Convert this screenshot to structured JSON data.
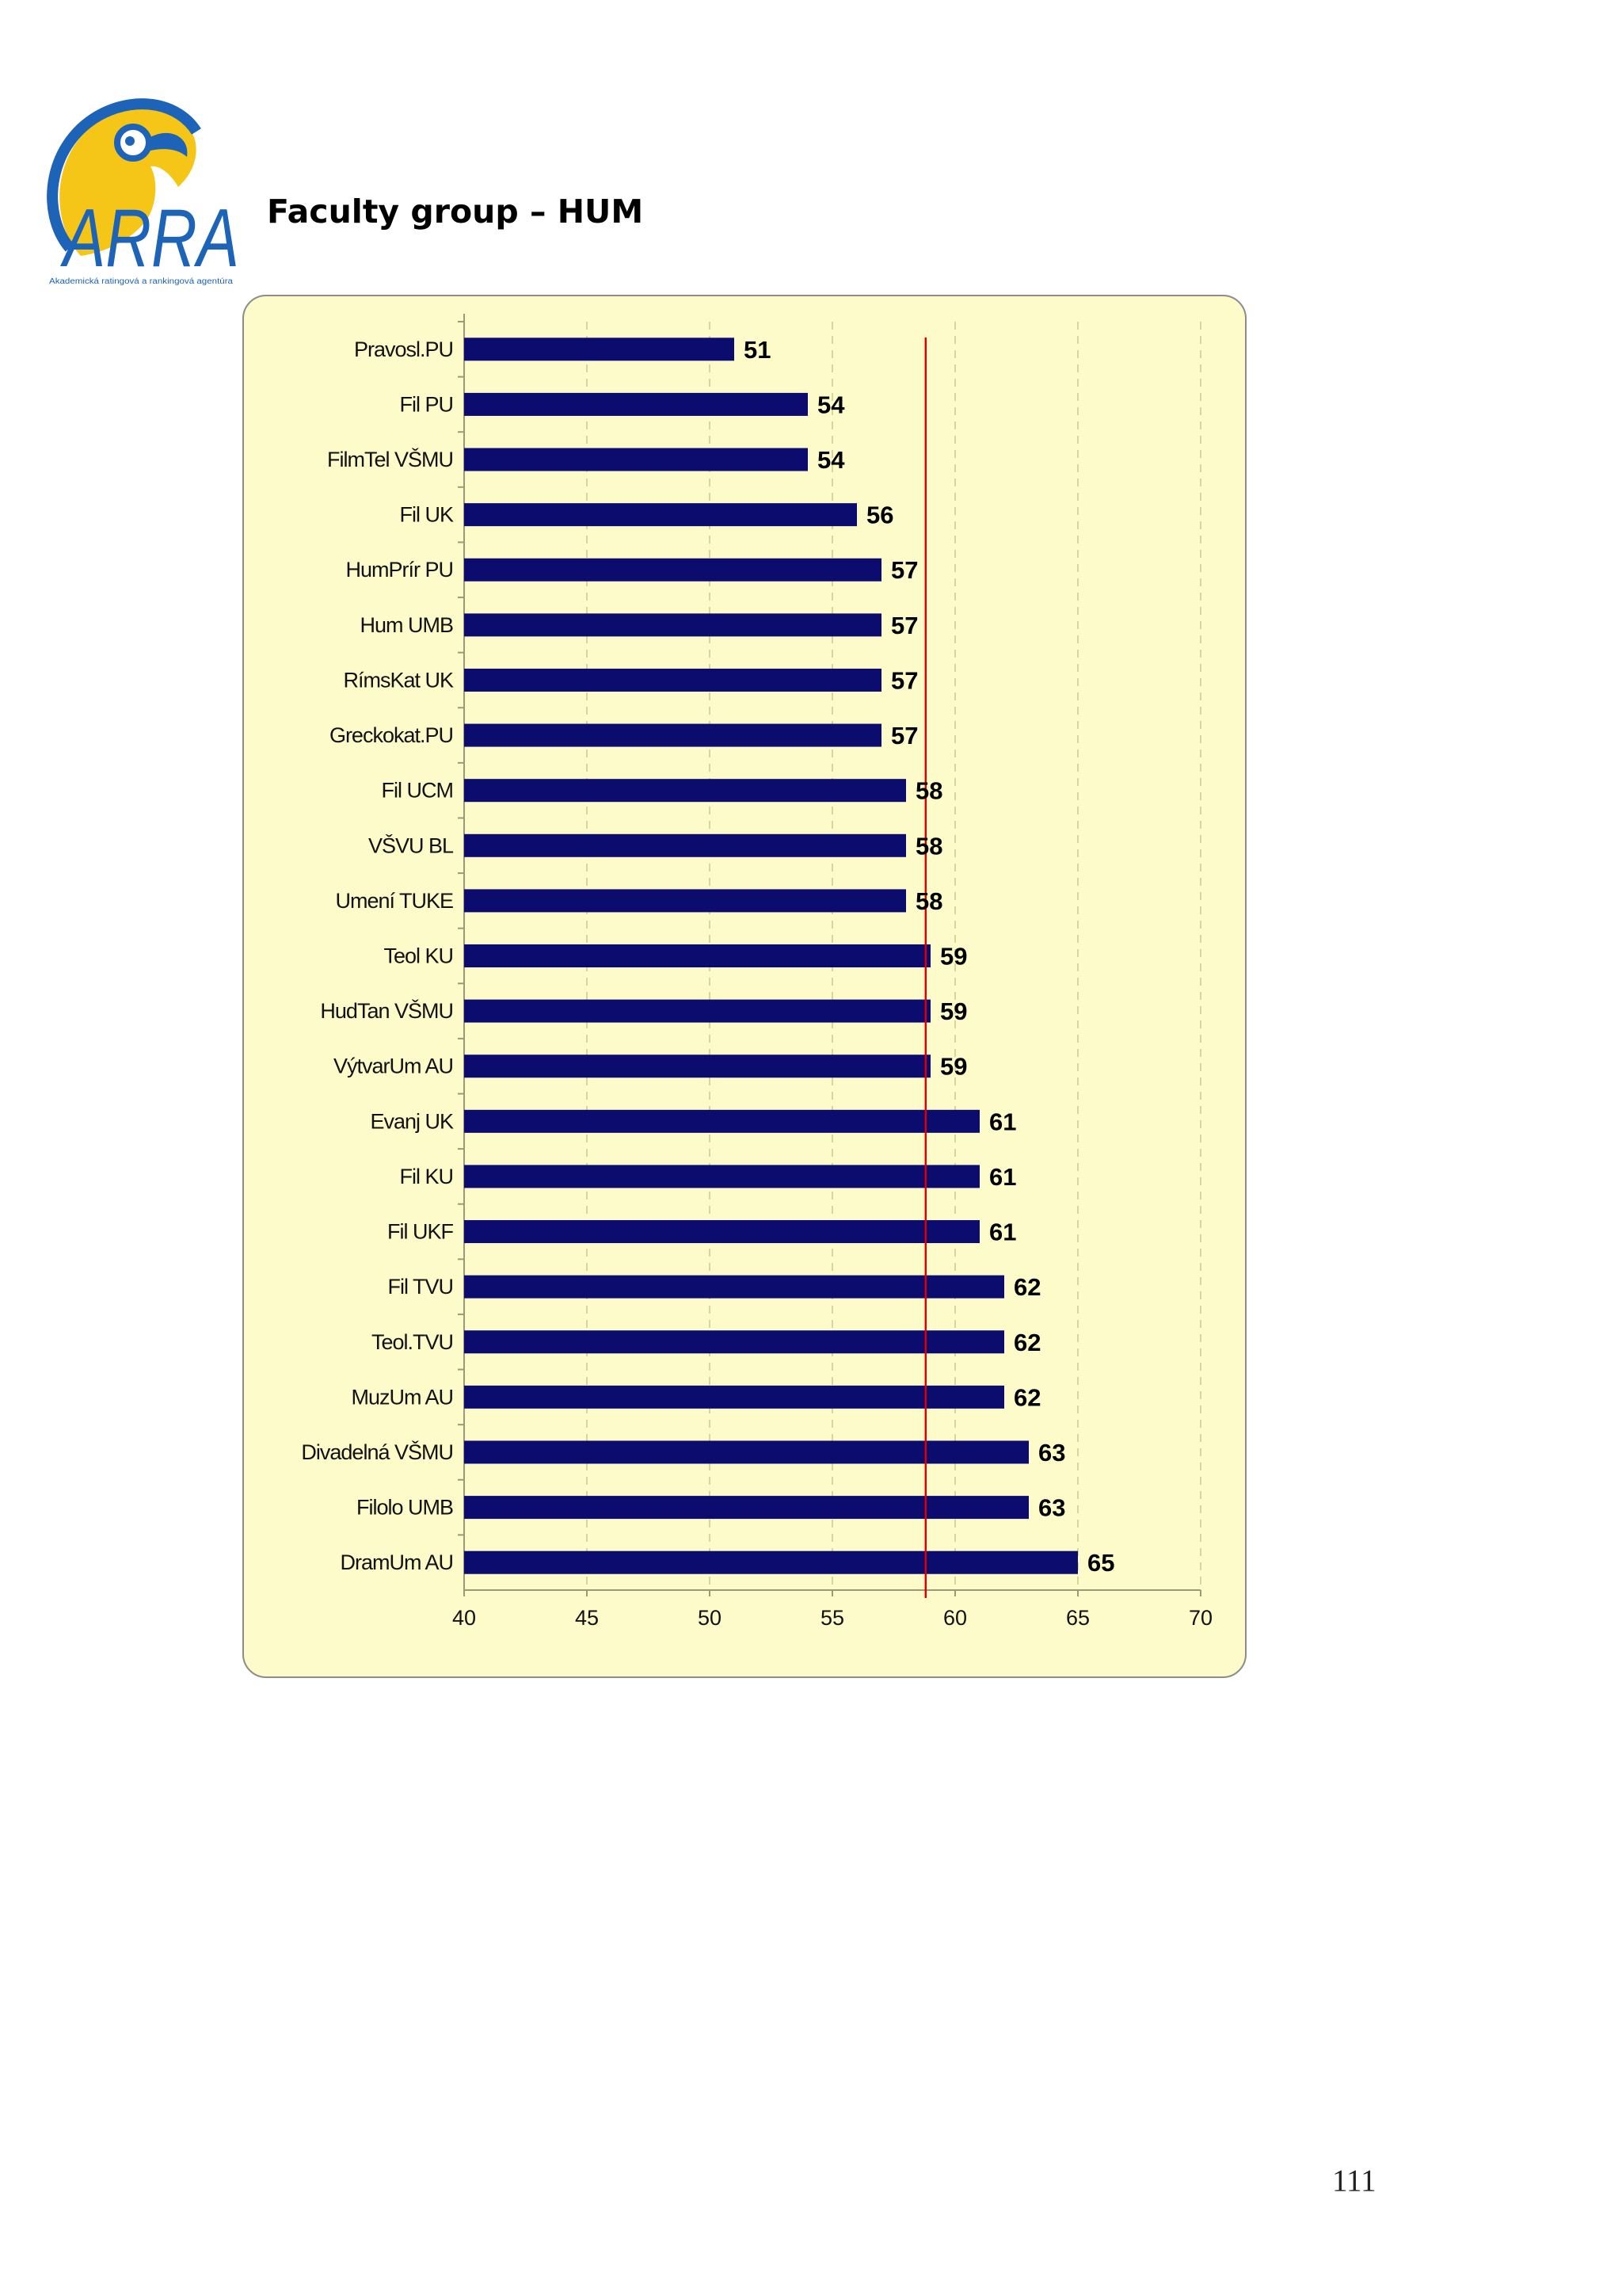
{
  "logo": {
    "text": "ARRA",
    "subtitle": "Akademická ratingová a rankingová agentúra",
    "colors": {
      "blue": "#1d63b8",
      "yellow": "#f5c518"
    }
  },
  "heading": "Faculty group – HUM",
  "page_number": "111",
  "chart_data": {
    "type": "bar",
    "orientation": "horizontal",
    "categories": [
      "Pravosl.PU",
      "Fil PU",
      "FilmTel VŠMU",
      "Fil UK",
      "HumPrír PU",
      "Hum UMB",
      "RímsKat UK",
      "Greckokat.PU",
      "Fil UCM",
      "VŠVU BL",
      "Umení TUKE",
      "Teol KU",
      "HudTan VŠMU",
      "VýtvarUm AU",
      "Evanj UK",
      "Fil KU",
      "Fil UKF",
      "Fil TVU",
      "Teol.TVU",
      "MuzUm AU",
      "Divadelná VŠMU",
      "Filolo UMB",
      "DramUm AU"
    ],
    "values": [
      51,
      54,
      54,
      56,
      57,
      57,
      57,
      57,
      58,
      58,
      58,
      59,
      59,
      59,
      61,
      61,
      61,
      62,
      62,
      62,
      63,
      63,
      65
    ],
    "xlim": [
      40,
      70
    ],
    "xticks": [
      40,
      45,
      50,
      55,
      60,
      65,
      70
    ],
    "reference_line": 58.8,
    "grid": "vertical dashed",
    "title": "",
    "xlabel": "",
    "ylabel": "",
    "colors": {
      "bar": "#0c0c6e",
      "reference_line": "#dd0000",
      "background": "#fdfbc9",
      "grid": "#d9d59c"
    }
  }
}
